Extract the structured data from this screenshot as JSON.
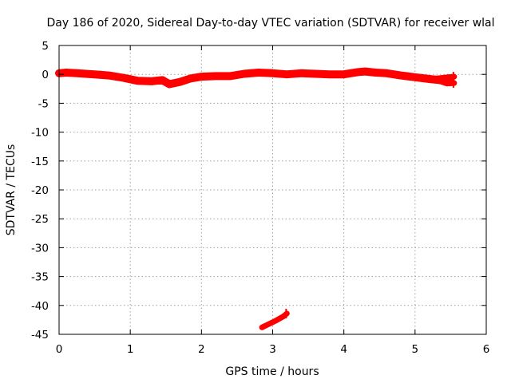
{
  "chart_data": {
    "type": "line",
    "title": "Day 186 of 2020, Sidereal Day-to-day VTEC variation (SDTVAR) for receiver wlal",
    "xlabel": "GPS time / hours",
    "ylabel": "SDTVAR / TECUs",
    "xlim": [
      0,
      6
    ],
    "ylim": [
      -45,
      5
    ],
    "xticks": [
      0,
      1,
      2,
      3,
      4,
      5,
      6
    ],
    "yticks": [
      5,
      0,
      -5,
      -10,
      -15,
      -20,
      -25,
      -30,
      -35,
      -40,
      -45
    ],
    "grid": true,
    "legend": "none",
    "color": "#ff0000",
    "series": [
      {
        "points": [
          [
            0.0,
            0.2
          ],
          [
            0.1,
            0.3
          ],
          [
            0.25,
            0.2
          ],
          [
            0.5,
            0.0
          ],
          [
            0.7,
            -0.2
          ],
          [
            0.9,
            -0.6
          ],
          [
            1.1,
            -1.1
          ],
          [
            1.3,
            -1.2
          ],
          [
            1.45,
            -1.0
          ],
          [
            1.55,
            -1.7
          ],
          [
            1.7,
            -1.3
          ],
          [
            1.85,
            -0.7
          ],
          [
            2.0,
            -0.4
          ],
          [
            2.2,
            -0.3
          ],
          [
            2.4,
            -0.3
          ],
          [
            2.6,
            0.1
          ],
          [
            2.8,
            0.3
          ],
          [
            3.0,
            0.2
          ],
          [
            3.2,
            0.0
          ],
          [
            3.4,
            0.2
          ],
          [
            3.6,
            0.1
          ],
          [
            3.8,
            0.0
          ],
          [
            4.0,
            0.0
          ],
          [
            4.2,
            0.4
          ],
          [
            4.3,
            0.5
          ],
          [
            4.45,
            0.3
          ],
          [
            4.6,
            0.2
          ],
          [
            4.8,
            -0.2
          ],
          [
            5.0,
            -0.5
          ],
          [
            5.2,
            -0.8
          ],
          [
            5.35,
            -1.0
          ],
          [
            5.5,
            -1.0
          ]
        ]
      },
      {
        "points": [
          [
            5.3,
            -1.0
          ],
          [
            5.45,
            -1.6
          ],
          [
            5.55,
            -1.5
          ]
        ]
      },
      {
        "points": [
          [
            5.3,
            -0.7
          ],
          [
            5.45,
            -0.5
          ],
          [
            5.55,
            -0.4
          ]
        ]
      },
      {
        "points": [
          [
            2.85,
            -43.8
          ],
          [
            2.95,
            -43.2
          ],
          [
            3.05,
            -42.6
          ],
          [
            3.15,
            -41.9
          ],
          [
            3.2,
            -41.4
          ]
        ]
      }
    ]
  }
}
